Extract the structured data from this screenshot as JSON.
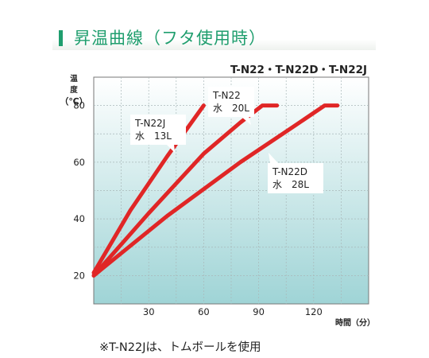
{
  "page": {
    "title": "昇温曲線（フタ使用時）",
    "models": "T-N22・T-N22D・T-N22J",
    "footnote": "※T-N22Jは、トムボールを使用"
  },
  "colors": {
    "accent": "#1f9e6e",
    "curve": "#e02626",
    "plot_top": "#ffffff",
    "plot_bottom": "#9fd4d6"
  },
  "chart_data": {
    "type": "line",
    "title": "",
    "xlabel": "時間（分）",
    "ylabel": "温度（℃）",
    "xlim": [
      0,
      150
    ],
    "ylim": [
      10,
      90
    ],
    "x_ticks": [
      30,
      60,
      90,
      120
    ],
    "y_ticks": [
      20,
      40,
      60,
      80
    ],
    "grid": true,
    "series": [
      {
        "name": "T-N22J",
        "label_lines": [
          "T-N22J",
          "水　13L"
        ],
        "points": [
          [
            0,
            21
          ],
          [
            20,
            43
          ],
          [
            40,
            62
          ],
          [
            60,
            80
          ]
        ]
      },
      {
        "name": "T-N22",
        "label_lines": [
          "T-N22",
          "水　20L"
        ],
        "points": [
          [
            0,
            20
          ],
          [
            30,
            42
          ],
          [
            60,
            63
          ],
          [
            80,
            74
          ],
          [
            92,
            80
          ],
          [
            100,
            80
          ]
        ]
      },
      {
        "name": "T-N22D",
        "label_lines": [
          "T-N22D",
          "水　28L"
        ],
        "points": [
          [
            0,
            20
          ],
          [
            40,
            41
          ],
          [
            80,
            60
          ],
          [
            110,
            73
          ],
          [
            126,
            80
          ],
          [
            133,
            80
          ]
        ]
      }
    ]
  }
}
